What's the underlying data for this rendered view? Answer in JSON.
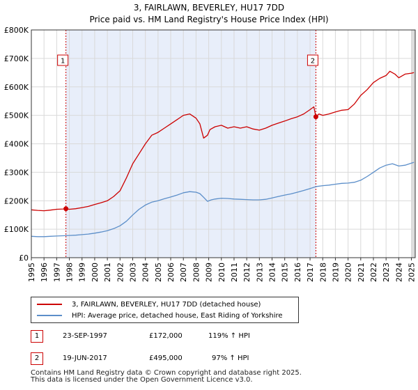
{
  "header": {
    "title": "3, FAIRLAWN, BEVERLEY, HU17 7DD",
    "subtitle": "Price paid vs. HM Land Registry's House Price Index (HPI)"
  },
  "chart_data": {
    "type": "line",
    "title": "3, FAIRLAWN, BEVERLEY, HU17 7DD",
    "subtitle": "Price paid vs. HM Land Registry's House Price Index (HPI)",
    "xlabel": "",
    "ylabel": "",
    "xlim": [
      1995.0,
      2025.3
    ],
    "ylim": [
      0,
      800000
    ],
    "grid": true,
    "y_ticks": [
      {
        "value": 0,
        "label": "£0"
      },
      {
        "value": 100000,
        "label": "£100K"
      },
      {
        "value": 200000,
        "label": "£200K"
      },
      {
        "value": 300000,
        "label": "£300K"
      },
      {
        "value": 400000,
        "label": "£400K"
      },
      {
        "value": 500000,
        "label": "£500K"
      },
      {
        "value": 600000,
        "label": "£600K"
      },
      {
        "value": 700000,
        "label": "£700K"
      },
      {
        "value": 800000,
        "label": "£800K"
      }
    ],
    "x_ticks": [
      1995,
      1996,
      1997,
      1998,
      1999,
      2000,
      2001,
      2002,
      2003,
      2004,
      2005,
      2006,
      2007,
      2008,
      2009,
      2010,
      2011,
      2012,
      2013,
      2014,
      2015,
      2016,
      2017,
      2018,
      2019,
      2020,
      2021,
      2022,
      2023,
      2024,
      2025
    ],
    "shaded_region": {
      "from": 1997.73,
      "to": 2017.46
    },
    "series": [
      {
        "name": "3, FAIRLAWN, BEVERLEY, HU17 7DD (detached house)",
        "color": "#cc0000",
        "x": [
          1995.0,
          1995.5,
          1996.0,
          1996.5,
          1997.0,
          1997.5,
          1997.73,
          1998.0,
          1998.5,
          1999.0,
          1999.5,
          2000.0,
          2000.5,
          2001.0,
          2001.5,
          2002.0,
          2002.5,
          2003.0,
          2003.5,
          2004.0,
          2004.5,
          2005.0,
          2005.5,
          2006.0,
          2006.5,
          2007.0,
          2007.5,
          2008.0,
          2008.3,
          2008.6,
          2008.9,
          2009.1,
          2009.5,
          2010.0,
          2010.5,
          2011.0,
          2011.5,
          2012.0,
          2012.5,
          2013.0,
          2013.5,
          2014.0,
          2014.5,
          2015.0,
          2015.5,
          2016.0,
          2016.5,
          2017.0,
          2017.3,
          2017.46,
          2017.7,
          2018.0,
          2018.5,
          2019.0,
          2019.5,
          2020.0,
          2020.5,
          2021.0,
          2021.5,
          2022.0,
          2022.5,
          2023.0,
          2023.3,
          2023.7,
          2024.0,
          2024.5,
          2025.0,
          2025.2
        ],
        "values": [
          168000,
          166000,
          165000,
          167000,
          170000,
          171000,
          172000,
          170000,
          172000,
          176000,
          180000,
          187000,
          193000,
          200000,
          215000,
          235000,
          280000,
          330000,
          365000,
          400000,
          430000,
          440000,
          455000,
          470000,
          485000,
          500000,
          505000,
          490000,
          470000,
          420000,
          430000,
          450000,
          460000,
          465000,
          455000,
          460000,
          455000,
          460000,
          452000,
          448000,
          455000,
          465000,
          473000,
          480000,
          488000,
          495000,
          505000,
          520000,
          530000,
          495000,
          505000,
          500000,
          505000,
          512000,
          518000,
          520000,
          540000,
          570000,
          590000,
          615000,
          630000,
          640000,
          655000,
          645000,
          632000,
          645000,
          648000,
          650000
        ]
      },
      {
        "name": "HPI: Average price, detached house, East Riding of Yorkshire",
        "color": "#5b8ec9",
        "x": [
          1995.0,
          1995.5,
          1996.0,
          1996.5,
          1997.0,
          1997.5,
          1998.0,
          1998.5,
          1999.0,
          1999.5,
          2000.0,
          2000.5,
          2001.0,
          2001.5,
          2002.0,
          2002.5,
          2003.0,
          2003.5,
          2004.0,
          2004.5,
          2005.0,
          2005.5,
          2006.0,
          2006.5,
          2007.0,
          2007.5,
          2008.0,
          2008.3,
          2008.6,
          2008.9,
          2009.2,
          2009.5,
          2010.0,
          2010.5,
          2011.0,
          2011.5,
          2012.0,
          2012.5,
          2013.0,
          2013.5,
          2014.0,
          2014.5,
          2015.0,
          2015.5,
          2016.0,
          2016.5,
          2017.0,
          2017.5,
          2018.0,
          2018.5,
          2019.0,
          2019.5,
          2020.0,
          2020.5,
          2021.0,
          2021.5,
          2022.0,
          2022.5,
          2023.0,
          2023.5,
          2024.0,
          2024.5,
          2025.0,
          2025.2
        ],
        "values": [
          75000,
          74000,
          74000,
          75000,
          76000,
          77000,
          78000,
          79000,
          81000,
          83000,
          86000,
          90000,
          95000,
          102000,
          112000,
          128000,
          150000,
          170000,
          185000,
          195000,
          200000,
          207000,
          213000,
          220000,
          228000,
          232000,
          230000,
          225000,
          212000,
          198000,
          203000,
          206000,
          209000,
          208000,
          206000,
          205000,
          204000,
          203000,
          203000,
          205000,
          210000,
          215000,
          220000,
          224000,
          230000,
          236000,
          243000,
          250000,
          253000,
          255000,
          258000,
          261000,
          262000,
          265000,
          272000,
          285000,
          300000,
          315000,
          325000,
          330000,
          322000,
          325000,
          332000,
          335000
        ]
      }
    ],
    "annotations": [
      {
        "label": "1",
        "x": 1997.73,
        "value": 172000
      },
      {
        "label": "2",
        "x": 2017.46,
        "value": 495000
      }
    ]
  },
  "legend": {
    "items": [
      {
        "label": "3, FAIRLAWN, BEVERLEY, HU17 7DD (detached house)",
        "color": "#cc0000"
      },
      {
        "label": "HPI: Average price, detached house, East Riding of Yorkshire",
        "color": "#5b8ec9"
      }
    ]
  },
  "transactions": [
    {
      "num": "1",
      "date": "23-SEP-1997",
      "price": "£172,000",
      "hpi": "119% ↑ HPI"
    },
    {
      "num": "2",
      "date": "19-JUN-2017",
      "price": "£495,000",
      "hpi": "97% ↑ HPI"
    }
  ],
  "footer": {
    "line1": "Contains HM Land Registry data © Crown copyright and database right 2025.",
    "line2": "This data is licensed under the Open Government Licence v3.0."
  }
}
